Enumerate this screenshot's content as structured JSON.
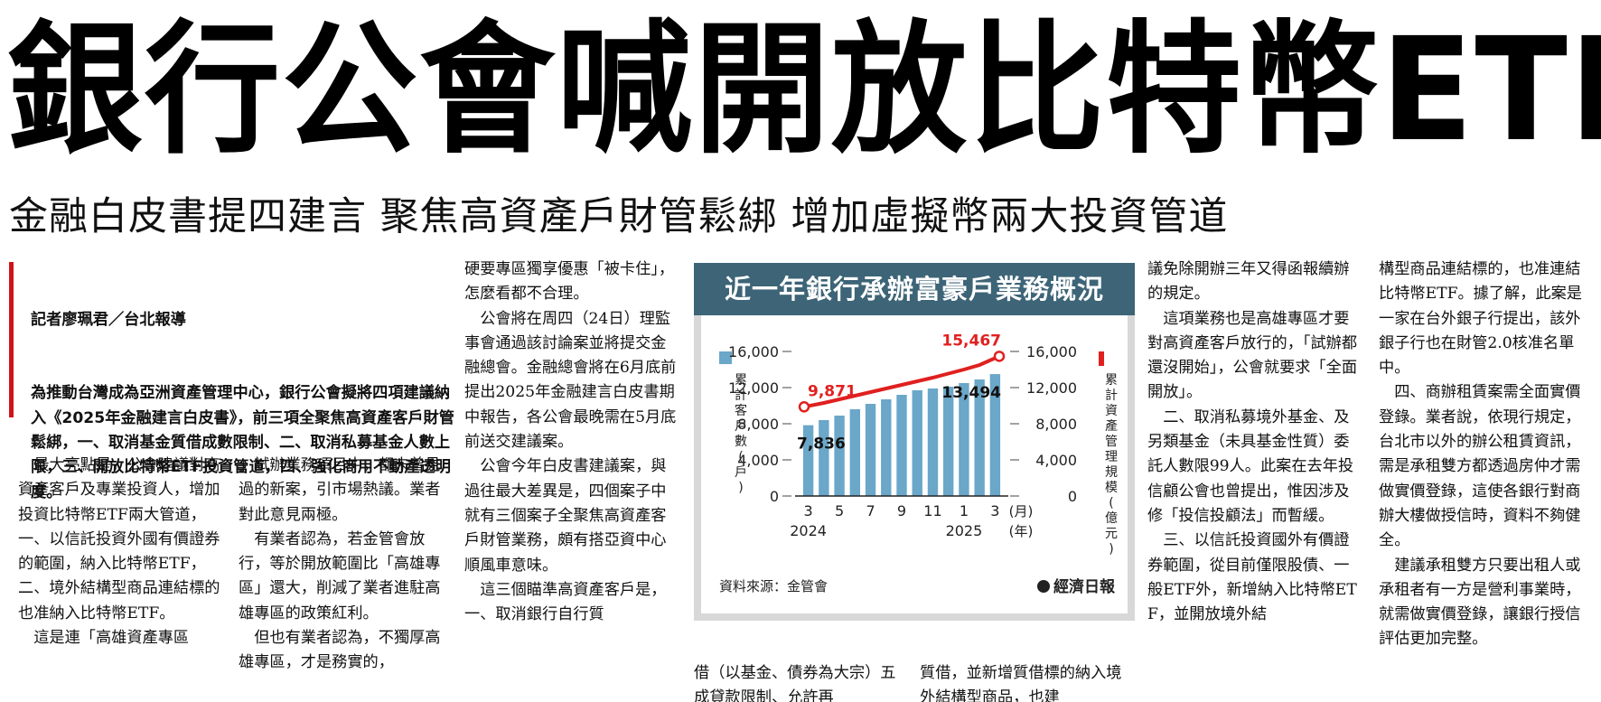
{
  "headline": "銀行公會喊開放比特幣ETF",
  "subhead": "金融白皮書提四建言 聚焦高資產戶財管鬆綁 增加虛擬幣兩大投資管道",
  "byline": "記者廖珮君／台北報導",
  "lead": "為推動台灣成為亞洲資產管理中心，銀行公會擬將四項建議納入《2025年金融建言白皮書》，前三項全聚焦高資產客戶財管鬆綁，一、取消基金質借成數限制、二、取消私募基金人數上限，三、開放比特幣ETF投資管道，四、強化商用不動產透明度。",
  "col1": "　最大亮點是，公會建議對高資產客戶及專業投資人，增加投資比特幣ETF兩大管道，一、以信託投資外國有價證券的範圍，納入比特幣ETF，二、境外結構型商品連結標的也准納入比特幣ETF。\n　這是連「高雄資產專區",
  "col2": "」試辦業務項目中，都未曾見過的新案，引市場熱議。業者對此意見兩極。\n　有業者認為，若金管會放行，等於開放範圍比「高雄專區」還大，削減了業者進駐高雄專區的政策紅利。\n　但也有業者認為，不獨厚高雄專區，才是務實的，",
  "col3": "硬要專區獨享優惠「被卡住」，怎麼看都不合理。\n　公會將在周四（24日）理監事會通過該討論案並將提交金融總會。金融總會將在6月底前提出2025年金融建言白皮書期中報告，各公會最晚需在5月底前送交建議案。\n　公會今年白皮書建議案，與過往最大差異是，四個案子中就有三個案子全聚焦高資產客戶財管業務，頗有搭亞資中心順風車意味。\n　這三個瞄準高資產客戶是，一、取消銀行自行質",
  "col4_bottom": "借（以基金、債券為大宗）五成貸款限制、允許再",
  "col5_bottom": "質借，並新增質借標的納入境外結構型商品，也建",
  "col6": "議免除開辦三年又得函報續辦的規定。\n　這項業務也是高雄專區才要對高資產客戶放行的，「試辦都還沒開始」，公會就要求「全面開放」。\n　二、取消私募境外基金、及另類基金（未具基金性質）委託人數限99人。此案在去年投信顧公會也曾提出，惟因涉及修「投信投顧法」而暫緩。\n　三、以信託投資國外有價證券範圍，從目前僅限股債、一般ETF外，新增納入比特幣ETF，並開放境外結",
  "col7": "構型商品連結標的，也准連結比特幣ETF。據了解，此案是一家在台外銀子行提出，該外銀子行也在財管2.0核准名單中。\n　四、商辦租賃案需全面實價登錄。業者說，依現行規定，台北市以外的辦公租賃資訊，需是承租雙方都透過房仲才需做實價登錄，這使各銀行對商辦大樓做授信時，資料不夠健全。\n　建議承租雙方只要出租人或承租者有一方是營利事業時，就需做實價登錄，讓銀行授信評估更加完整。",
  "chart": {
    "title": "近一年銀行承辦富豪戶業務概況",
    "source": "資料來源：金管會",
    "logo": "經濟日報",
    "bar_color": "#6aa7c9",
    "line_color": "#e0201f"
  },
  "chart_data": {
    "type": "bar",
    "x_labels": [
      "3",
      "5",
      "7",
      "9",
      "11",
      "1",
      "3"
    ],
    "x_unit_top": "(月)",
    "x_unit_bottom": "(年)",
    "year_labels": [
      "2024",
      "2025"
    ],
    "left_axis_title": "累計客戶數",
    "left_axis_unit": "(戶)",
    "right_axis_title": "累計資產管理規模",
    "right_axis_unit": "(億元)",
    "left_ticks": [
      "16,000",
      "12,000",
      "8,000",
      "4,000",
      "0"
    ],
    "right_ticks": [
      "16,000",
      "12,000",
      "8,000",
      "4,000",
      "0"
    ],
    "ylim": [
      0,
      16000
    ],
    "series": [
      {
        "type": "bar",
        "values": [
          7836,
          8400,
          8900,
          9600,
          10200,
          10700,
          11200,
          11700,
          11900,
          12100,
          12500,
          12900,
          13494
        ]
      },
      {
        "type": "line",
        "values": [
          9871,
          10300,
          10700,
          11100,
          11500,
          11900,
          12300,
          12700,
          13100,
          13550,
          14000,
          14500,
          15467
        ]
      }
    ],
    "annotations": {
      "line_start": "9,871",
      "line_end": "15,467",
      "bar_start": "7,836",
      "bar_end": "13,494"
    }
  }
}
